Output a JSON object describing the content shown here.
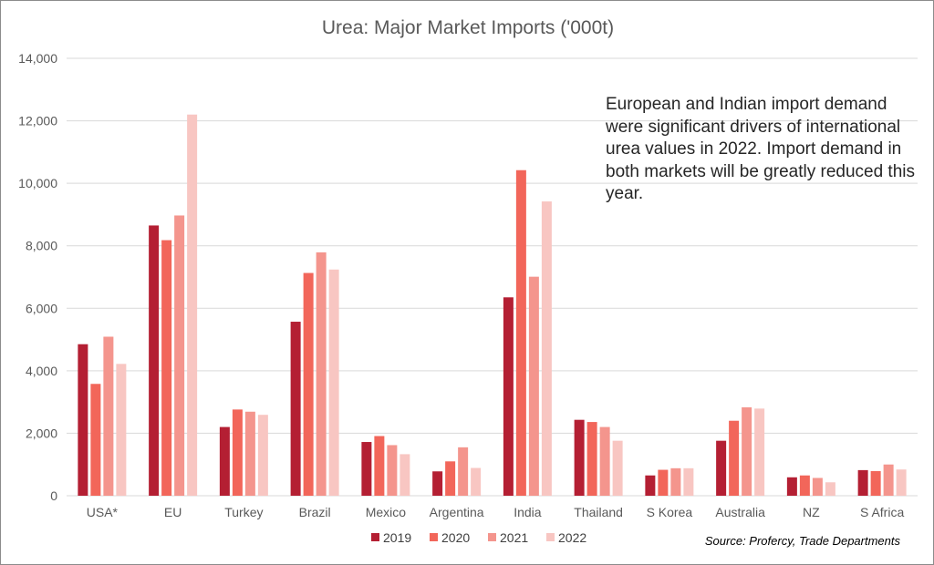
{
  "chart_data": {
    "type": "bar",
    "title": "Urea: Major Market Imports ('000t)",
    "categories": [
      "USA*",
      "EU",
      "Turkey",
      "Brazil",
      "Mexico",
      "Argentina",
      "India",
      "Thailand",
      "S Korea",
      "Australia",
      "NZ",
      "S Africa"
    ],
    "series": [
      {
        "name": "2019",
        "color": "#b41f33",
        "values": [
          4850,
          8650,
          2200,
          5570,
          1720,
          780,
          6350,
          2430,
          650,
          1760,
          590,
          820
        ]
      },
      {
        "name": "2020",
        "color": "#f2665a",
        "values": [
          3580,
          8180,
          2760,
          7130,
          1910,
          1100,
          10420,
          2360,
          830,
          2400,
          650,
          790
        ]
      },
      {
        "name": "2021",
        "color": "#f4958d",
        "values": [
          5090,
          8970,
          2690,
          7790,
          1620,
          1550,
          7010,
          2200,
          880,
          2830,
          570,
          1000
        ]
      },
      {
        "name": "2022",
        "color": "#f8c6c2",
        "values": [
          4220,
          12200,
          2590,
          7240,
          1330,
          890,
          9420,
          1760,
          880,
          2790,
          430,
          840
        ]
      }
    ],
    "yticks": [
      "0",
      "2,000",
      "4,000",
      "6,000",
      "8,000",
      "10,000",
      "12,000",
      "14,000"
    ],
    "ylim": [
      0,
      14000
    ],
    "grid": true,
    "legend_position": "bottom",
    "annotation": "European and Indian import demand were significant drivers of international urea values in 2022. Import demand in both markets will be greatly reduced this year.",
    "source": "Source: Profercy, Trade Departments",
    "gridline_color": "#d9d9d9"
  }
}
